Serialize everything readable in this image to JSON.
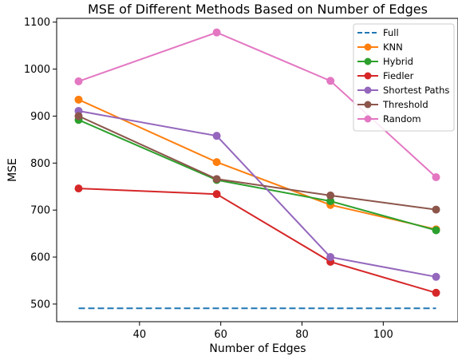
{
  "chart_data": {
    "type": "line",
    "title": "MSE of Different Methods Based on Number of Edges",
    "xlabel": "Number of Edges",
    "ylabel": "MSE",
    "x": [
      25,
      59,
      87,
      113
    ],
    "xlim": [
      19.6,
      118.4
    ],
    "ylim": [
      462.5,
      1108
    ],
    "xticks": [
      40,
      60,
      80,
      100
    ],
    "yticks": [
      500,
      600,
      700,
      800,
      900,
      1000,
      1100
    ],
    "grid": false,
    "legend_position": "top-right",
    "series": [
      {
        "name": "Full",
        "style": "dashed",
        "markers": false,
        "color": "#1f77b4",
        "values": [
          491,
          491,
          491,
          491
        ]
      },
      {
        "name": "KNN",
        "style": "solid",
        "markers": true,
        "color": "#ff7f0e",
        "values": [
          935,
          802,
          711,
          659
        ]
      },
      {
        "name": "Hybrid",
        "style": "solid",
        "markers": true,
        "color": "#2ca02c",
        "values": [
          892,
          764,
          719,
          657
        ]
      },
      {
        "name": "Fiedler",
        "style": "solid",
        "markers": true,
        "color": "#d62728",
        "values": [
          746,
          734,
          590,
          524
        ]
      },
      {
        "name": "Shortest Paths",
        "style": "solid",
        "markers": true,
        "color": "#9467bd",
        "values": [
          911,
          858,
          600,
          558
        ]
      },
      {
        "name": "Threshold",
        "style": "solid",
        "markers": true,
        "color": "#8c564b",
        "values": [
          900,
          766,
          731,
          701
        ]
      },
      {
        "name": "Random",
        "style": "solid",
        "markers": true,
        "color": "#e377c2",
        "values": [
          974,
          1078,
          975,
          770
        ]
      }
    ]
  }
}
